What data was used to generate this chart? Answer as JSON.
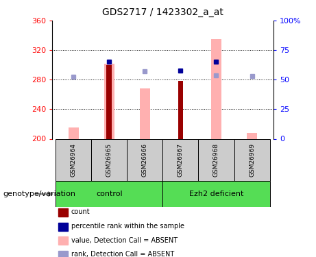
{
  "title": "GDS2717 / 1423302_a_at",
  "samples": [
    "GSM26964",
    "GSM26965",
    "GSM26966",
    "GSM26967",
    "GSM26968",
    "GSM26969"
  ],
  "group_labels": [
    "control",
    "Ezh2 deficient"
  ],
  "ylim_left": [
    200,
    360
  ],
  "ylim_right": [
    0,
    100
  ],
  "yticks_left": [
    200,
    240,
    280,
    320,
    360
  ],
  "yticks_right": [
    0,
    25,
    50,
    75,
    100
  ],
  "bar_color_dark_red": "#990000",
  "bar_color_pink": "#ffb0b0",
  "dot_color_blue": "#000099",
  "dot_color_light_blue": "#9999cc",
  "count_bars": [
    null,
    300,
    null,
    278,
    null,
    null
  ],
  "value_absent_bars": [
    215,
    302,
    268,
    null,
    335,
    208
  ],
  "percentile_rank_dots": [
    null,
    304,
    null,
    292,
    304,
    null
  ],
  "rank_absent_dots": [
    284,
    null,
    291,
    null,
    286,
    285
  ],
  "xlabel": "genotype/variation",
  "legend_items": [
    {
      "label": "count",
      "color": "#990000"
    },
    {
      "label": "percentile rank within the sample",
      "color": "#000099"
    },
    {
      "label": "value, Detection Call = ABSENT",
      "color": "#ffb0b0"
    },
    {
      "label": "rank, Detection Call = ABSENT",
      "color": "#9999cc"
    }
  ]
}
